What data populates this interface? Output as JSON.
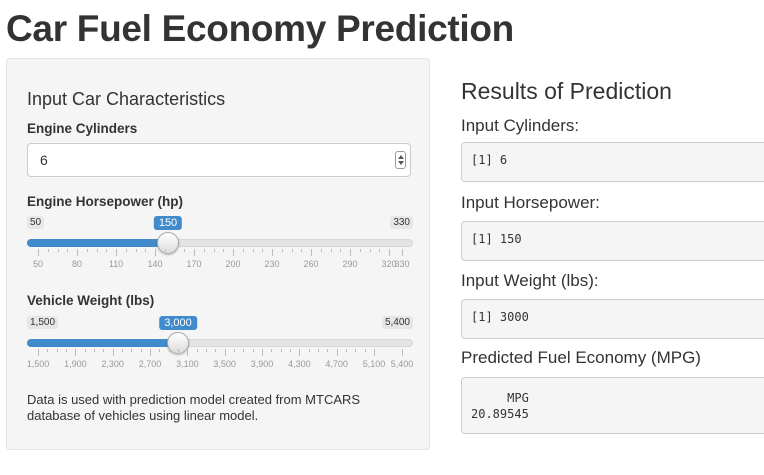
{
  "page": {
    "title": "Car Fuel Economy Prediction"
  },
  "sidebar": {
    "heading": "Input Car Characteristics",
    "cylinders": {
      "label": "Engine Cylinders",
      "value": "6"
    },
    "horsepower": {
      "label": "Engine Horsepower (hp)",
      "min": 50,
      "max": 330,
      "value": 150,
      "min_label": "50",
      "max_label": "330",
      "value_label": "150",
      "ticks": [
        {
          "v": 50,
          "t": "50"
        },
        {
          "v": 80,
          "t": "80"
        },
        {
          "v": 110,
          "t": "110"
        },
        {
          "v": 140,
          "t": "140"
        },
        {
          "v": 170,
          "t": "170"
        },
        {
          "v": 200,
          "t": "200"
        },
        {
          "v": 230,
          "t": "230"
        },
        {
          "v": 260,
          "t": "260"
        },
        {
          "v": 290,
          "t": "290"
        },
        {
          "v": 320,
          "t": "320"
        },
        {
          "v": 330,
          "t": "330"
        }
      ]
    },
    "weight": {
      "label": "Vehicle Weight (lbs)",
      "min": 1500,
      "max": 5400,
      "value": 3000,
      "min_label": "1,500",
      "max_label": "5,400",
      "value_label": "3,000",
      "ticks": [
        {
          "v": 1500,
          "t": "1,500"
        },
        {
          "v": 1900,
          "t": "1,900"
        },
        {
          "v": 2300,
          "t": "2,300"
        },
        {
          "v": 2700,
          "t": "2,700"
        },
        {
          "v": 3100,
          "t": "3,100"
        },
        {
          "v": 3500,
          "t": "3,500"
        },
        {
          "v": 3900,
          "t": "3,900"
        },
        {
          "v": 4300,
          "t": "4,300"
        },
        {
          "v": 4700,
          "t": "4,700"
        },
        {
          "v": 5100,
          "t": "5,100"
        },
        {
          "v": 5400,
          "t": "5,400"
        }
      ]
    },
    "note": "Data is used with prediction model created from MTCARS database of vehicles using linear model."
  },
  "results": {
    "heading": "Results of Prediction",
    "cylinders_label": "Input Cylinders:",
    "cylinders_output": "[1] 6",
    "horsepower_label": "Input Horsepower:",
    "horsepower_output": "[1] 150",
    "weight_label": "Input Weight (lbs):",
    "weight_output": "[1] 3000",
    "mpg_label": "Predicted Fuel Economy (MPG)",
    "mpg_output": "     MPG\n20.89545"
  },
  "colors": {
    "accent": "#428bca",
    "panel_bg": "#f5f5f5",
    "text": "#333333"
  },
  "icons": {
    "spinner": "up-down-spinner-icon"
  }
}
